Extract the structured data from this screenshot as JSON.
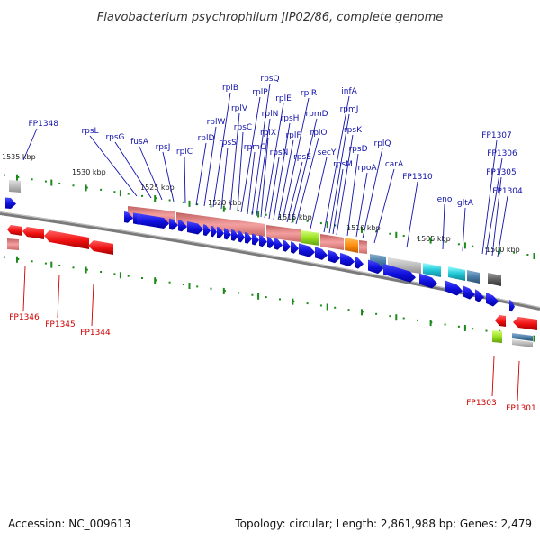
{
  "title": "Flavobacterium psychrophilum JIP02/86, complete genome",
  "footer": {
    "accession": "Accession: NC_009613",
    "summary": "Topology: circular; Length: 2,861,988 bp; Genes: 2,479"
  },
  "scale_labels": [
    "1535 kbp",
    "1530 kbp",
    "1525 kbp",
    "1520 kbp",
    "1515 kbp",
    "1510 kbp",
    "1505 kbp",
    "1500 kbp"
  ],
  "upper_gene_labels": [
    "FP1348",
    "rpsL",
    "rpsG",
    "fusA",
    "rpsJ",
    "rplC",
    "rplD",
    "rplW",
    "rplB",
    "rpsS",
    "rplV",
    "rpsC",
    "rplP",
    "rpmC",
    "rpsQ",
    "rplN",
    "rplX",
    "rplE",
    "rpsN",
    "rpsH",
    "rplF",
    "rplR",
    "rpsE",
    "rpmD",
    "rplO",
    "secY",
    "infA",
    "rpmJ",
    "rpsM",
    "rpsK",
    "rpsD",
    "rpoA",
    "rplQ",
    "carA",
    "FP1310",
    "eno",
    "gltA",
    "FP1307",
    "FP1306",
    "FP1305",
    "FP1304"
  ],
  "lower_gene_labels": [
    "FP1346",
    "FP1345",
    "FP1344",
    "FP1303",
    "FP1301"
  ],
  "colors": {
    "forward_cds": "#1010dd",
    "reverse_cds": "#ee1111",
    "forward_label": "#1111aa",
    "reverse_label": "#cc0000",
    "ribosomal": "#f08080",
    "green_tick": "#1a8a1a"
  }
}
